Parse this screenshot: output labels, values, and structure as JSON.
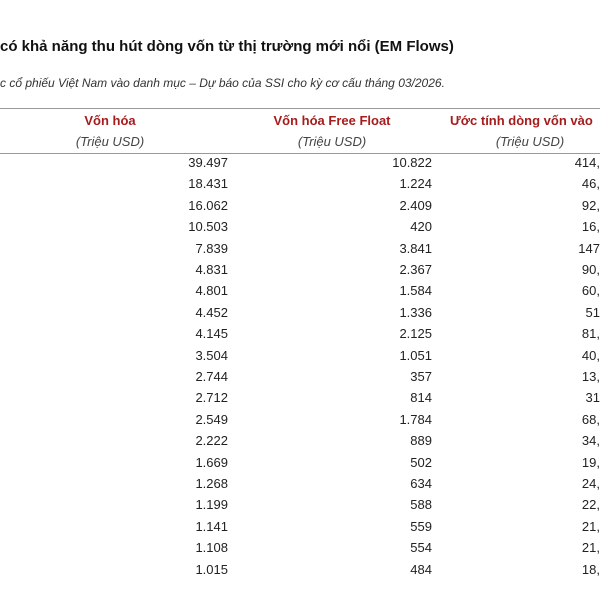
{
  "header": {
    "title": "có khả năng thu hút dòng vốn từ thị trường mới nổi (EM Flows)",
    "subtitle": "c cổ phiếu Việt Nam vào danh mục – Dự báo của SSI cho kỳ cơ cấu tháng 03/2026."
  },
  "table": {
    "columns": [
      "Vốn hóa",
      "Vốn hóa Free Float",
      "Ước tính dòng vốn vào"
    ],
    "units": [
      "(Triệu USD)",
      "(Triệu USD)",
      "(Triệu USD)"
    ],
    "rows": [
      [
        "39.497",
        "10.822",
        "414,"
      ],
      [
        "18.431",
        "1.224",
        "46,"
      ],
      [
        "16.062",
        "2.409",
        "92,"
      ],
      [
        "10.503",
        "420",
        "16,"
      ],
      [
        "7.839",
        "3.841",
        "147"
      ],
      [
        "4.831",
        "2.367",
        "90,"
      ],
      [
        "4.801",
        "1.584",
        "60,"
      ],
      [
        "4.452",
        "1.336",
        "51"
      ],
      [
        "4.145",
        "2.125",
        "81,"
      ],
      [
        "3.504",
        "1.051",
        "40,"
      ],
      [
        "2.744",
        "357",
        "13,"
      ],
      [
        "2.712",
        "814",
        "31"
      ],
      [
        "2.549",
        "1.784",
        "68,"
      ],
      [
        "2.222",
        "889",
        "34,"
      ],
      [
        "1.669",
        "502",
        "19,"
      ],
      [
        "1.268",
        "634",
        "24,"
      ],
      [
        "1.199",
        "588",
        "22,"
      ],
      [
        "1.141",
        "559",
        "21,"
      ],
      [
        "1.108",
        "554",
        "21,"
      ],
      [
        "1.015",
        "484",
        "18,"
      ]
    ]
  }
}
